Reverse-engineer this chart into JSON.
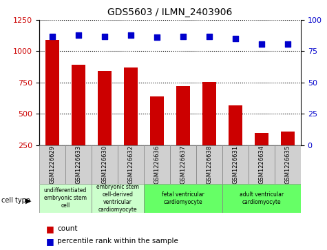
{
  "title": "GDS5603 / ILMN_2403906",
  "samples": [
    "GSM1226629",
    "GSM1226633",
    "GSM1226630",
    "GSM1226632",
    "GSM1226636",
    "GSM1226637",
    "GSM1226638",
    "GSM1226631",
    "GSM1226634",
    "GSM1226635"
  ],
  "counts": [
    1090,
    890,
    840,
    870,
    640,
    720,
    755,
    565,
    345,
    355
  ],
  "percentiles": [
    87,
    88,
    87,
    88,
    86,
    87,
    87,
    85,
    81,
    81
  ],
  "ylim_left": [
    250,
    1250
  ],
  "ylim_right": [
    0,
    100
  ],
  "yticks_left": [
    250,
    500,
    750,
    1000,
    1250
  ],
  "yticks_right": [
    0,
    25,
    50,
    75,
    100
  ],
  "bar_color": "#cc0000",
  "dot_color": "#0000cc",
  "cell_type_groups": [
    {
      "label": "undifferentiated\nembryonic stem\ncell",
      "start": 0,
      "end": 2,
      "color": "#ccffcc"
    },
    {
      "label": "embryonic stem\ncell-derived\nventricular\ncardiomyocyte",
      "start": 2,
      "end": 4,
      "color": "#ccffcc"
    },
    {
      "label": "fetal ventricular\ncardiomyocyte",
      "start": 4,
      "end": 7,
      "color": "#66ff66"
    },
    {
      "label": "adult ventricular\ncardiomyocyte",
      "start": 7,
      "end": 10,
      "color": "#66ff66"
    }
  ],
  "cell_type_label": "cell type",
  "legend_count_label": "count",
  "legend_percentile_label": "percentile rank within the sample",
  "background_color": "#ffffff",
  "plot_bg_color": "#ffffff",
  "grid_color": "#000000",
  "tick_label_color_left": "#cc0000",
  "tick_label_color_right": "#0000cc",
  "sample_box_color": "#d0d0d0"
}
